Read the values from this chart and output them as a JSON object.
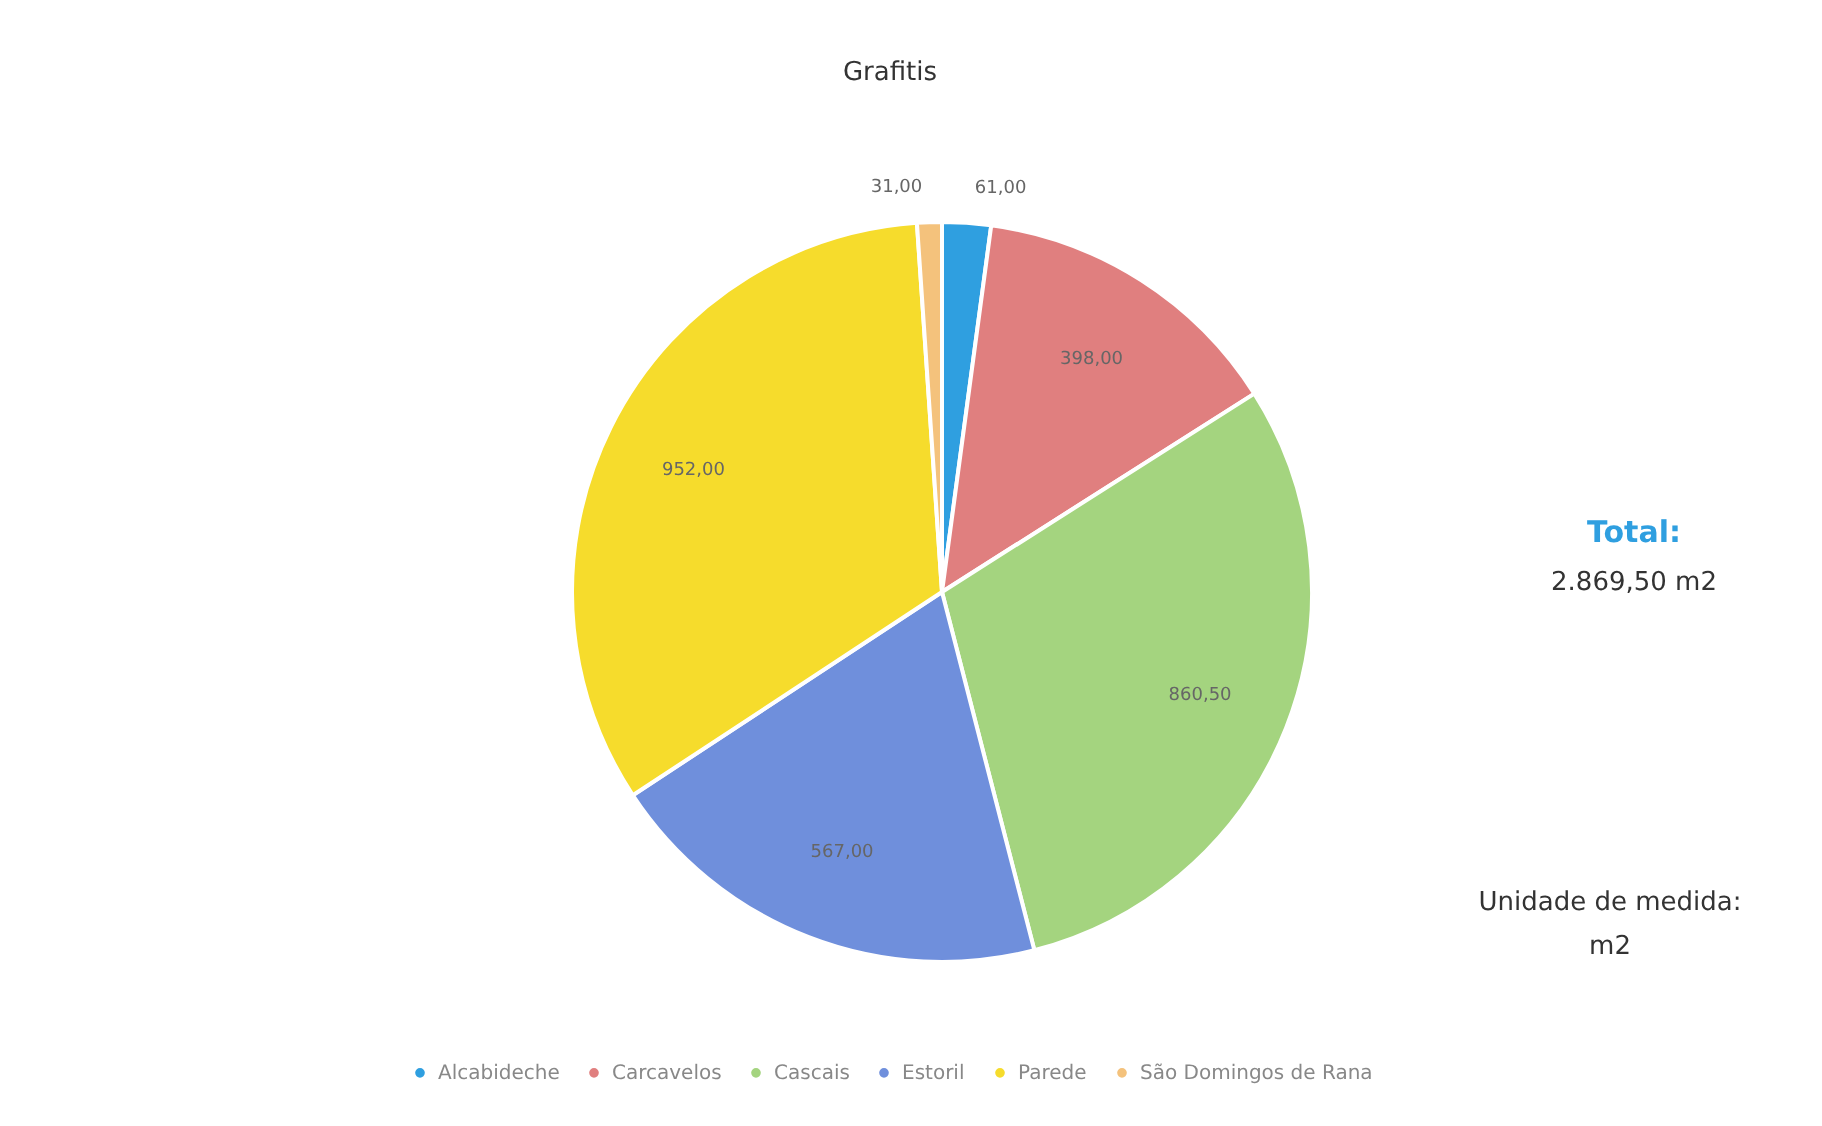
{
  "chart_data": {
    "type": "pie",
    "title": "Grafitis",
    "categories": [
      "Alcabideche",
      "Carcavelos",
      "Cascais",
      "Estoril",
      "Parede",
      "São Domingos de Rana"
    ],
    "values": [
      61,
      398,
      860.5,
      567,
      952,
      31
    ],
    "value_labels": [
      "61,00",
      "398,00",
      "860,50",
      "567,00",
      "952,00",
      "31,00"
    ],
    "colors": [
      "#2f9fe0",
      "#e07f7f",
      "#a4d47f",
      "#6f8fdc",
      "#f6dc2c",
      "#f4c27c"
    ],
    "legend": "bottom",
    "annotations": [
      "Total:",
      "2.869,50 m2",
      "Unidade de medida:",
      "m2"
    ]
  }
}
